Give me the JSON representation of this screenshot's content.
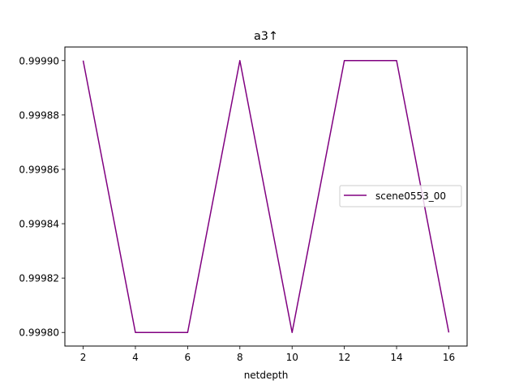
{
  "chart_data": {
    "type": "line",
    "title": "a3↑",
    "xlabel": "netdepth",
    "ylabel": "",
    "x": [
      2,
      4,
      6,
      8,
      10,
      12,
      14,
      16
    ],
    "xticks": [
      2,
      4,
      6,
      8,
      10,
      12,
      14,
      16
    ],
    "xlim": [
      1.3,
      16.7
    ],
    "yticks": [
      0.9998,
      0.99982,
      0.99984,
      0.99986,
      0.99988,
      0.9999
    ],
    "ytick_labels": [
      "0.99980",
      "0.99982",
      "0.99984",
      "0.99986",
      "0.99988",
      "0.99990"
    ],
    "ylim": [
      0.999795,
      0.999905
    ],
    "grid": false,
    "legend_position": "center-right",
    "series": [
      {
        "name": "scene0553_00",
        "color": "#800080",
        "values": [
          0.9999,
          0.9998,
          0.9998,
          0.9999,
          0.9998,
          0.9999,
          0.9999,
          0.9998
        ]
      }
    ]
  }
}
